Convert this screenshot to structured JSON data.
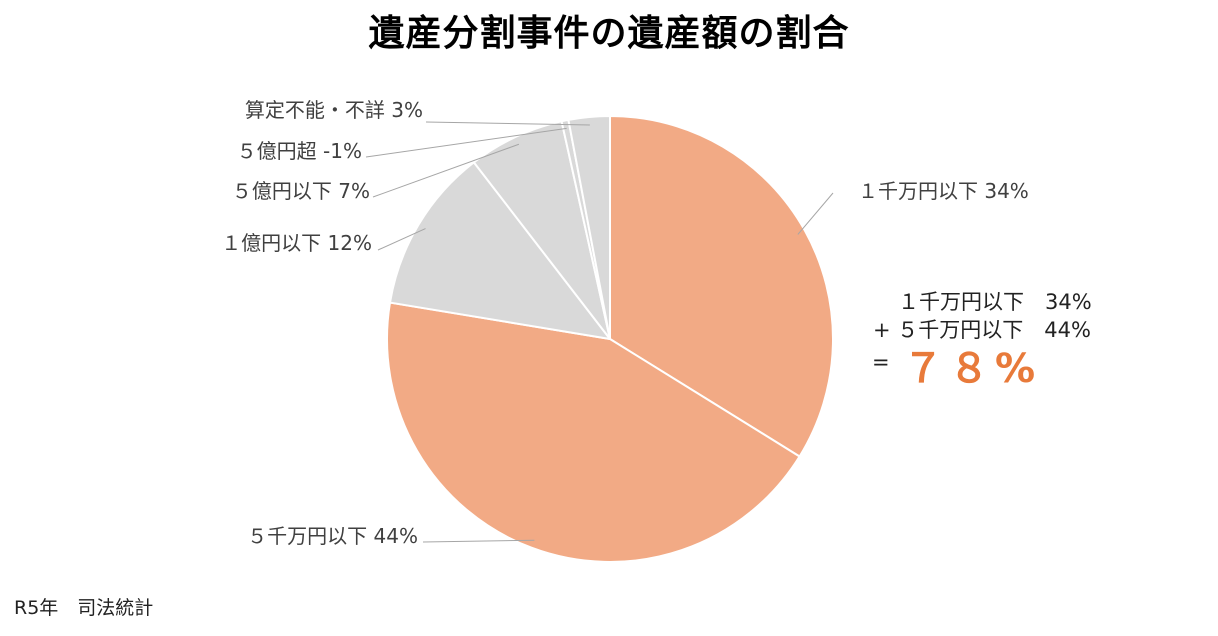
{
  "title": "遺産分割事件の遺産額の割合",
  "colors": {
    "highlight": "#f2aa85",
    "other": "#d9d9d9",
    "border": "#ffffff",
    "accent": "#e87a3a"
  },
  "chart_data": {
    "type": "pie",
    "title": "遺産分割事件の遺産額の割合",
    "slices": [
      {
        "label": "１千万円以下 34%",
        "category": "１千万円以下",
        "value": 34,
        "color": "#f2aa85"
      },
      {
        "label": "５千万円以下 44%",
        "category": "５千万円以下",
        "value": 44,
        "color": "#f2aa85"
      },
      {
        "label": "１億円以下 12%",
        "category": "１億円以下",
        "value": 12,
        "color": "#d9d9d9"
      },
      {
        "label": "５億円以下 7%",
        "category": "５億円以下",
        "value": 7,
        "color": "#d9d9d9"
      },
      {
        "label": "５億円超 -1%",
        "category": "５億円超",
        "value": 0.5,
        "color": "#d9d9d9"
      },
      {
        "label": "算定不能・不詳 3%",
        "category": "算定不能・不詳",
        "value": 3,
        "color": "#d9d9d9"
      }
    ]
  },
  "callout": {
    "line1": "１千万円以下　34%",
    "line2": "+ ５千万円以下　44%",
    "equals": "=",
    "total": "７８%"
  },
  "source": "R5年　司法統計"
}
